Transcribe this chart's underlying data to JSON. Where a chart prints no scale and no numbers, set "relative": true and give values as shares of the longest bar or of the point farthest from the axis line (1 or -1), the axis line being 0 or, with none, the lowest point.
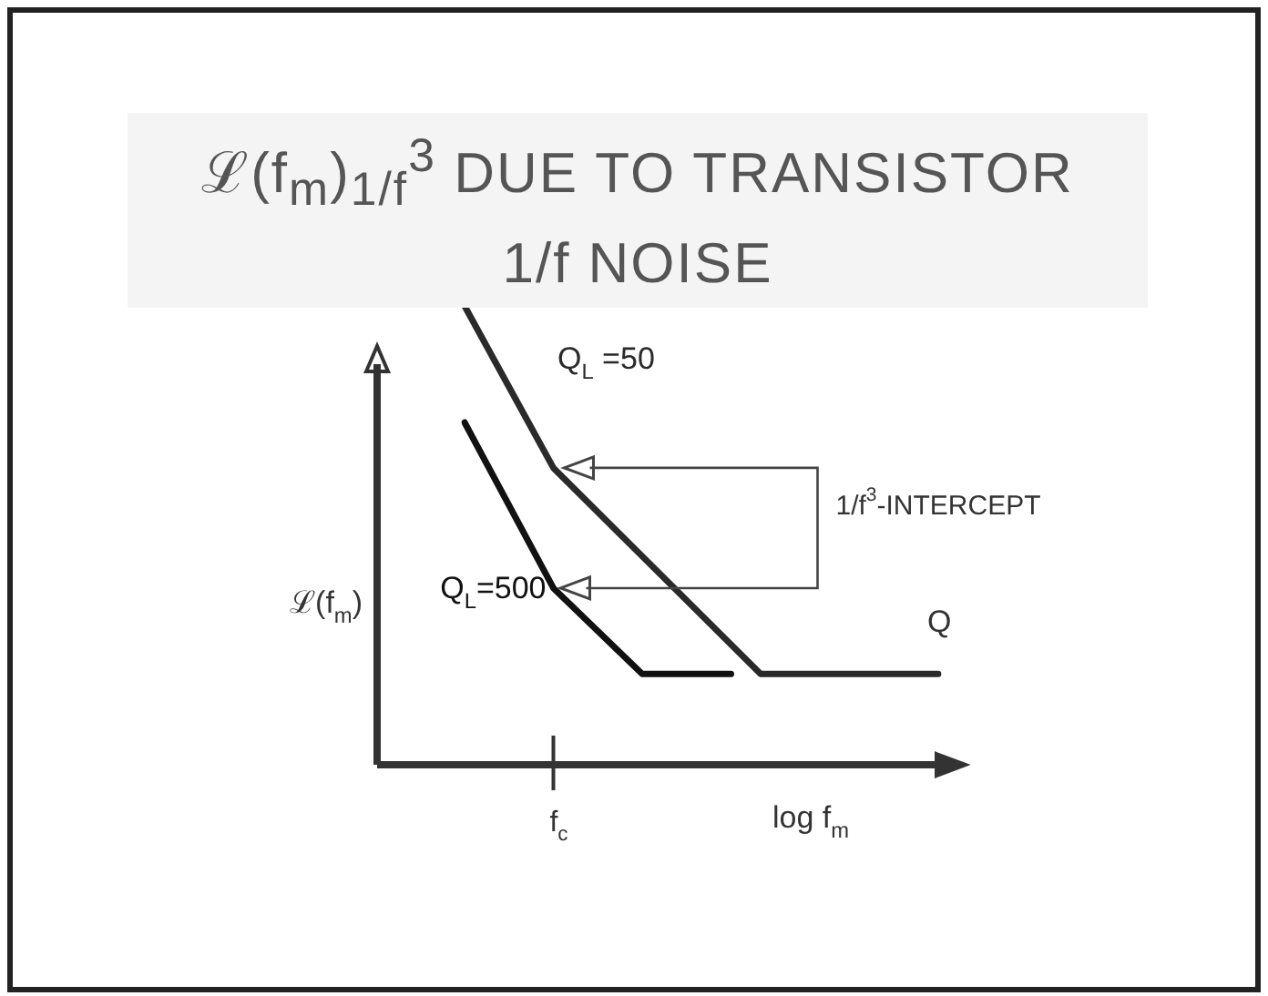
{
  "chart_data": {
    "type": "line",
    "title": "ℒ(f$_{m}$)$_{1/f}$$^{3}$ DUE TO TRANSISTOR 1/f NOISE",
    "xlabel": "log f$_{m}$",
    "ylabel": "ℒ(f$_{m}$)",
    "relative": true,
    "categories": [
      null,
      null,
      null,
      null,
      null,
      null,
      null,
      null,
      null,
      null,
      null,
      null,
      null,
      null,
      null,
      null,
      null
    ],
    "series": [
      {
        "name": "Q$_{L}$ =50",
        "color": "#2a2a2a",
        "values": [
          1,
          null,
          null,
          0.647,
          null,
          null,
          null,
          null,
          null,
          null,
          0.198,
          null,
          null,
          null,
          null,
          null,
          0.198
        ]
      },
      {
        "name": "Q$_{L}$=500",
        "color": "#111111",
        "values": [
          0.746,
          null,
          null,
          0.385,
          null,
          null,
          0.198,
          null,
          null,
          0.198,
          null,
          null,
          null,
          null,
          null,
          null,
          null
        ]
      }
    ],
    "annotations": [
      "1/f$^{3}$-INTERCEPT",
      "Q",
      "f$_{c}$"
    ],
    "marker": "none",
    "line_style": "solid"
  }
}
